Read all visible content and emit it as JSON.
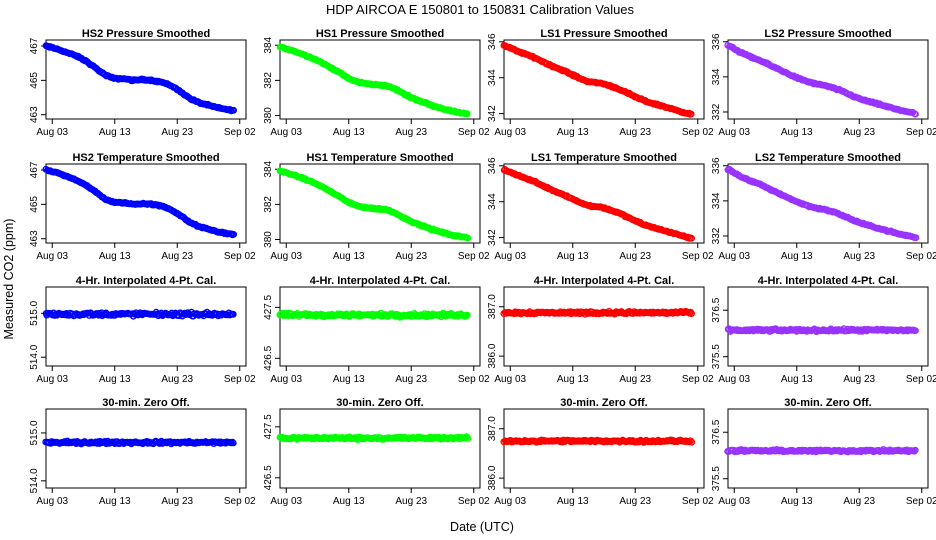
{
  "figure": {
    "title": "HDP    AIRCOA E    150801 to 150831    Calibration Values",
    "xlabel": "Date (UTC)",
    "ylabel": "Measured CO2 (ppm)"
  },
  "colors": {
    "HS2": "#0000ff",
    "HS1": "#00ff00",
    "LS1": "#ff0000",
    "LS2": "#9933ff"
  },
  "chart_data": [
    {
      "type": "scatter",
      "title": "HS2 Pressure Smoothed",
      "color": "HS2",
      "xlim": [
        0,
        32
      ],
      "ylim": [
        462.75,
        467.35
      ],
      "yticks": [
        463,
        465,
        467
      ],
      "xticks": [
        {
          "x": 1,
          "label": "Aug 03"
        },
        {
          "x": 11,
          "label": "Aug 13"
        },
        {
          "x": 21,
          "label": "Aug 23"
        },
        {
          "x": 31,
          "label": "Sep 02"
        }
      ],
      "series": [
        {
          "name": "HS2",
          "x": [
            0,
            2,
            3.5,
            5,
            6.5,
            8,
            9.5,
            11,
            12.5,
            14,
            15.5,
            17,
            18.5,
            20,
            21.5,
            23,
            24.5,
            26,
            27.5,
            29,
            30
          ],
          "y": [
            467.0,
            466.8,
            466.6,
            466.4,
            466.1,
            465.7,
            465.3,
            465.1,
            465.1,
            465.0,
            465.05,
            465.0,
            464.9,
            464.7,
            464.35,
            463.95,
            463.7,
            463.55,
            463.4,
            463.3,
            463.25
          ]
        }
      ],
      "noise": 0.06,
      "radius": 2.7
    },
    {
      "type": "scatter",
      "title": "HS1 Pressure Smoothed",
      "color": "HS1",
      "xlim": [
        0,
        32
      ],
      "ylim": [
        379.8,
        384.3
      ],
      "yticks": [
        380,
        382,
        384
      ],
      "xticks": [
        {
          "x": 1,
          "label": "Aug 03"
        },
        {
          "x": 11,
          "label": "Aug 13"
        },
        {
          "x": 21,
          "label": "Aug 23"
        },
        {
          "x": 31,
          "label": "Sep 02"
        }
      ],
      "series": [
        {
          "name": "HS1",
          "x": [
            0,
            2,
            3.5,
            5,
            6.5,
            8,
            9.5,
            11,
            12.5,
            14,
            15.5,
            17,
            18.5,
            20,
            21.5,
            23,
            24.5,
            26,
            27.5,
            29,
            30
          ],
          "y": [
            383.9,
            383.7,
            383.5,
            383.3,
            383.05,
            382.75,
            382.45,
            382.1,
            381.9,
            381.8,
            381.75,
            381.7,
            381.5,
            381.2,
            380.95,
            380.75,
            380.55,
            380.4,
            380.25,
            380.15,
            380.1
          ]
        }
      ],
      "noise": 0.06,
      "radius": 2.7
    },
    {
      "type": "scatter",
      "title": "LS1 Pressure Smoothed",
      "color": "LS1",
      "xlim": [
        0,
        32
      ],
      "ylim": [
        341.7,
        346.1
      ],
      "yticks": [
        342,
        344,
        346
      ],
      "xticks": [
        {
          "x": 1,
          "label": "Aug 03"
        },
        {
          "x": 11,
          "label": "Aug 13"
        },
        {
          "x": 21,
          "label": "Aug 23"
        },
        {
          "x": 31,
          "label": "Sep 02"
        }
      ],
      "series": [
        {
          "name": "LS1",
          "x": [
            0,
            2,
            3.5,
            5,
            6.5,
            8,
            9.5,
            11,
            12.5,
            14,
            15.5,
            17,
            18.5,
            20,
            21.5,
            23,
            24.5,
            26,
            27.5,
            29,
            30
          ],
          "y": [
            345.8,
            345.5,
            345.3,
            345.1,
            344.85,
            344.6,
            344.4,
            344.15,
            343.9,
            343.75,
            343.7,
            343.55,
            343.35,
            343.1,
            342.85,
            342.65,
            342.5,
            342.35,
            342.2,
            342.05,
            341.95
          ]
        }
      ],
      "noise": 0.06,
      "radius": 2.7
    },
    {
      "type": "scatter",
      "title": "LS2 Pressure Smoothed",
      "color": "LS2",
      "xlim": [
        0,
        32
      ],
      "ylim": [
        331.6,
        336.1
      ],
      "yticks": [
        332,
        334,
        336
      ],
      "xticks": [
        {
          "x": 1,
          "label": "Aug 03"
        },
        {
          "x": 11,
          "label": "Aug 13"
        },
        {
          "x": 21,
          "label": "Aug 23"
        },
        {
          "x": 31,
          "label": "Sep 02"
        }
      ],
      "series": [
        {
          "name": "LS2",
          "x": [
            0,
            2,
            3.5,
            5,
            6.5,
            8,
            9.5,
            11,
            12.5,
            14,
            15.5,
            17,
            18.5,
            20,
            21.5,
            23,
            24.5,
            26,
            27.5,
            29,
            30
          ],
          "y": [
            335.8,
            335.4,
            335.15,
            334.95,
            334.7,
            334.45,
            334.2,
            333.95,
            333.75,
            333.6,
            333.5,
            333.35,
            333.15,
            332.9,
            332.7,
            332.55,
            332.4,
            332.25,
            332.1,
            332.0,
            331.9
          ]
        }
      ],
      "noise": 0.06,
      "radius": 2.7
    },
    {
      "type": "scatter",
      "title": "HS2 Temperature Smoothed",
      "color": "HS2",
      "xlim": [
        0,
        32
      ],
      "ylim": [
        462.75,
        467.35
      ],
      "yticks": [
        463,
        465,
        467
      ],
      "xticks": [
        {
          "x": 1,
          "label": "Aug 03"
        },
        {
          "x": 11,
          "label": "Aug 13"
        },
        {
          "x": 21,
          "label": "Aug 23"
        },
        {
          "x": 31,
          "label": "Sep 02"
        }
      ],
      "series": [
        {
          "name": "HS2",
          "x": [
            0,
            2,
            3.5,
            5,
            6.5,
            8,
            9.5,
            11,
            12.5,
            14,
            15.5,
            17,
            18.5,
            20,
            21.5,
            23,
            24.5,
            26,
            27.5,
            29,
            30
          ],
          "y": [
            467.0,
            466.8,
            466.6,
            466.4,
            466.1,
            465.7,
            465.3,
            465.1,
            465.1,
            465.0,
            465.05,
            465.0,
            464.9,
            464.7,
            464.35,
            463.95,
            463.7,
            463.55,
            463.4,
            463.3,
            463.25
          ]
        }
      ],
      "noise": 0.06,
      "radius": 2.7
    },
    {
      "type": "scatter",
      "title": "HS1 Temperature Smoothed",
      "color": "HS1",
      "xlim": [
        0,
        32
      ],
      "ylim": [
        379.8,
        384.3
      ],
      "yticks": [
        380,
        382,
        384
      ],
      "xticks": [
        {
          "x": 1,
          "label": "Aug 03"
        },
        {
          "x": 11,
          "label": "Aug 13"
        },
        {
          "x": 21,
          "label": "Aug 23"
        },
        {
          "x": 31,
          "label": "Sep 02"
        }
      ],
      "series": [
        {
          "name": "HS1",
          "x": [
            0,
            2,
            3.5,
            5,
            6.5,
            8,
            9.5,
            11,
            12.5,
            14,
            15.5,
            17,
            18.5,
            20,
            21.5,
            23,
            24.5,
            26,
            27.5,
            29,
            30
          ],
          "y": [
            383.9,
            383.7,
            383.5,
            383.3,
            383.05,
            382.75,
            382.45,
            382.1,
            381.9,
            381.8,
            381.75,
            381.7,
            381.5,
            381.2,
            380.95,
            380.75,
            380.55,
            380.4,
            380.25,
            380.15,
            380.1
          ]
        }
      ],
      "noise": 0.06,
      "radius": 2.7
    },
    {
      "type": "scatter",
      "title": "LS1 Temperature Smoothed",
      "color": "LS1",
      "xlim": [
        0,
        32
      ],
      "ylim": [
        341.7,
        346.1
      ],
      "yticks": [
        342,
        344,
        346
      ],
      "xticks": [
        {
          "x": 1,
          "label": "Aug 03"
        },
        {
          "x": 11,
          "label": "Aug 13"
        },
        {
          "x": 21,
          "label": "Aug 23"
        },
        {
          "x": 31,
          "label": "Sep 02"
        }
      ],
      "series": [
        {
          "name": "LS1",
          "x": [
            0,
            2,
            3.5,
            5,
            6.5,
            8,
            9.5,
            11,
            12.5,
            14,
            15.5,
            17,
            18.5,
            20,
            21.5,
            23,
            24.5,
            26,
            27.5,
            29,
            30
          ],
          "y": [
            345.8,
            345.5,
            345.3,
            345.1,
            344.85,
            344.6,
            344.4,
            344.15,
            343.9,
            343.75,
            343.7,
            343.55,
            343.35,
            343.1,
            342.85,
            342.65,
            342.5,
            342.35,
            342.2,
            342.05,
            341.95
          ]
        }
      ],
      "noise": 0.06,
      "radius": 2.7
    },
    {
      "type": "scatter",
      "title": "LS2 Temperature Smoothed",
      "color": "LS2",
      "xlim": [
        0,
        32
      ],
      "ylim": [
        331.6,
        336.1
      ],
      "yticks": [
        332,
        334,
        336
      ],
      "xticks": [
        {
          "x": 1,
          "label": "Aug 03"
        },
        {
          "x": 11,
          "label": "Aug 13"
        },
        {
          "x": 21,
          "label": "Aug 23"
        },
        {
          "x": 31,
          "label": "Sep 02"
        }
      ],
      "series": [
        {
          "name": "LS2",
          "x": [
            0,
            2,
            3.5,
            5,
            6.5,
            8,
            9.5,
            11,
            12.5,
            14,
            15.5,
            17,
            18.5,
            20,
            21.5,
            23,
            24.5,
            26,
            27.5,
            29,
            30
          ],
          "y": [
            335.8,
            335.4,
            335.15,
            334.95,
            334.7,
            334.45,
            334.2,
            333.95,
            333.75,
            333.6,
            333.5,
            333.35,
            333.15,
            332.9,
            332.7,
            332.55,
            332.4,
            332.25,
            332.1,
            332.0,
            331.9
          ]
        }
      ],
      "noise": 0.06,
      "radius": 2.7
    },
    {
      "type": "scatter",
      "title": "4-Hr. Interpolated 4-Pt. Cal.",
      "color": "HS2",
      "xlim": [
        0,
        32
      ],
      "ylim": [
        513.8,
        515.6
      ],
      "yticks": [
        514.0,
        515.0
      ],
      "xticks": [
        {
          "x": 1,
          "label": "Aug 03"
        },
        {
          "x": 11,
          "label": "Aug 13"
        },
        {
          "x": 21,
          "label": "Aug 23"
        },
        {
          "x": 31,
          "label": "Sep 02"
        }
      ],
      "series": [
        {
          "name": "HS2",
          "x": [
            0,
            30
          ],
          "y": [
            514.98,
            514.98
          ]
        }
      ],
      "noise": 0.06,
      "radius": 2.7
    },
    {
      "type": "scatter",
      "title": "4-Hr. Interpolated 4-Pt. Cal.",
      "color": "HS1",
      "xlim": [
        0,
        32
      ],
      "ylim": [
        426.35,
        427.9
      ],
      "yticks": [
        426.5,
        427.5
      ],
      "xticks": [
        {
          "x": 1,
          "label": "Aug 03"
        },
        {
          "x": 11,
          "label": "Aug 13"
        },
        {
          "x": 21,
          "label": "Aug 23"
        },
        {
          "x": 31,
          "label": "Sep 02"
        }
      ],
      "series": [
        {
          "name": "HS1",
          "x": [
            0,
            30
          ],
          "y": [
            427.35,
            427.35
          ]
        }
      ],
      "noise": 0.05,
      "radius": 2.7
    },
    {
      "type": "scatter",
      "title": "4-Hr. Interpolated 4-Pt. Cal.",
      "color": "LS1",
      "xlim": [
        0,
        32
      ],
      "ylim": [
        385.8,
        387.4
      ],
      "yticks": [
        386.0,
        387.0
      ],
      "xticks": [
        {
          "x": 1,
          "label": "Aug 03"
        },
        {
          "x": 11,
          "label": "Aug 13"
        },
        {
          "x": 21,
          "label": "Aug 23"
        },
        {
          "x": 31,
          "label": "Sep 02"
        }
      ],
      "series": [
        {
          "name": "LS1",
          "x": [
            0,
            30
          ],
          "y": [
            386.88,
            386.88
          ]
        }
      ],
      "noise": 0.04,
      "radius": 2.7
    },
    {
      "type": "scatter",
      "title": "4-Hr. Interpolated 4-Pt. Cal.",
      "color": "LS2",
      "xlim": [
        0,
        32
      ],
      "ylim": [
        375.3,
        377.0
      ],
      "yticks": [
        375.5,
        376.5
      ],
      "xticks": [
        {
          "x": 1,
          "label": "Aug 03"
        },
        {
          "x": 11,
          "label": "Aug 13"
        },
        {
          "x": 21,
          "label": "Aug 23"
        },
        {
          "x": 31,
          "label": "Sep 02"
        }
      ],
      "series": [
        {
          "name": "LS2",
          "x": [
            0,
            30
          ],
          "y": [
            376.07,
            376.07
          ]
        }
      ],
      "noise": 0.04,
      "radius": 2.7
    },
    {
      "type": "scatter",
      "title": "30-min. Zero Off.",
      "color": "HS2",
      "xlim": [
        0,
        32
      ],
      "ylim": [
        513.85,
        515.5
      ],
      "yticks": [
        514.0,
        515.0
      ],
      "xticks": [
        {
          "x": 1,
          "label": "Aug 03"
        },
        {
          "x": 11,
          "label": "Aug 13"
        },
        {
          "x": 21,
          "label": "Aug 23"
        },
        {
          "x": 31,
          "label": "Sep 02"
        }
      ],
      "series": [
        {
          "name": "HS2",
          "x": [
            0,
            30
          ],
          "y": [
            514.8,
            514.8
          ]
        }
      ],
      "noise": 0.04,
      "radius": 2.7
    },
    {
      "type": "scatter",
      "title": "30-min. Zero Off.",
      "color": "HS1",
      "xlim": [
        0,
        32
      ],
      "ylim": [
        426.3,
        427.85
      ],
      "yticks": [
        426.5,
        427.5
      ],
      "xticks": [
        {
          "x": 1,
          "label": "Aug 03"
        },
        {
          "x": 11,
          "label": "Aug 13"
        },
        {
          "x": 21,
          "label": "Aug 23"
        },
        {
          "x": 31,
          "label": "Sep 02"
        }
      ],
      "series": [
        {
          "name": "HS1",
          "x": [
            0,
            30
          ],
          "y": [
            427.28,
            427.28
          ]
        }
      ],
      "noise": 0.035,
      "radius": 2.7
    },
    {
      "type": "scatter",
      "title": "30-min. Zero Off.",
      "color": "LS1",
      "xlim": [
        0,
        32
      ],
      "ylim": [
        385.8,
        387.4
      ],
      "yticks": [
        386.0,
        387.0
      ],
      "xticks": [
        {
          "x": 1,
          "label": "Aug 03"
        },
        {
          "x": 11,
          "label": "Aug 13"
        },
        {
          "x": 21,
          "label": "Aug 23"
        },
        {
          "x": 31,
          "label": "Sep 02"
        }
      ],
      "series": [
        {
          "name": "LS1",
          "x": [
            0,
            30
          ],
          "y": [
            386.75,
            386.75
          ]
        }
      ],
      "noise": 0.035,
      "radius": 2.7
    },
    {
      "type": "scatter",
      "title": "30-min. Zero Off.",
      "color": "LS2",
      "xlim": [
        0,
        32
      ],
      "ylim": [
        375.3,
        377.0
      ],
      "yticks": [
        375.5,
        376.5
      ],
      "xticks": [
        {
          "x": 1,
          "label": "Aug 03"
        },
        {
          "x": 11,
          "label": "Aug 13"
        },
        {
          "x": 21,
          "label": "Aug 23"
        },
        {
          "x": 31,
          "label": "Sep 02"
        }
      ],
      "series": [
        {
          "name": "LS2",
          "x": [
            0,
            30
          ],
          "y": [
            376.1,
            376.1
          ]
        }
      ],
      "noise": 0.035,
      "radius": 2.7
    }
  ]
}
